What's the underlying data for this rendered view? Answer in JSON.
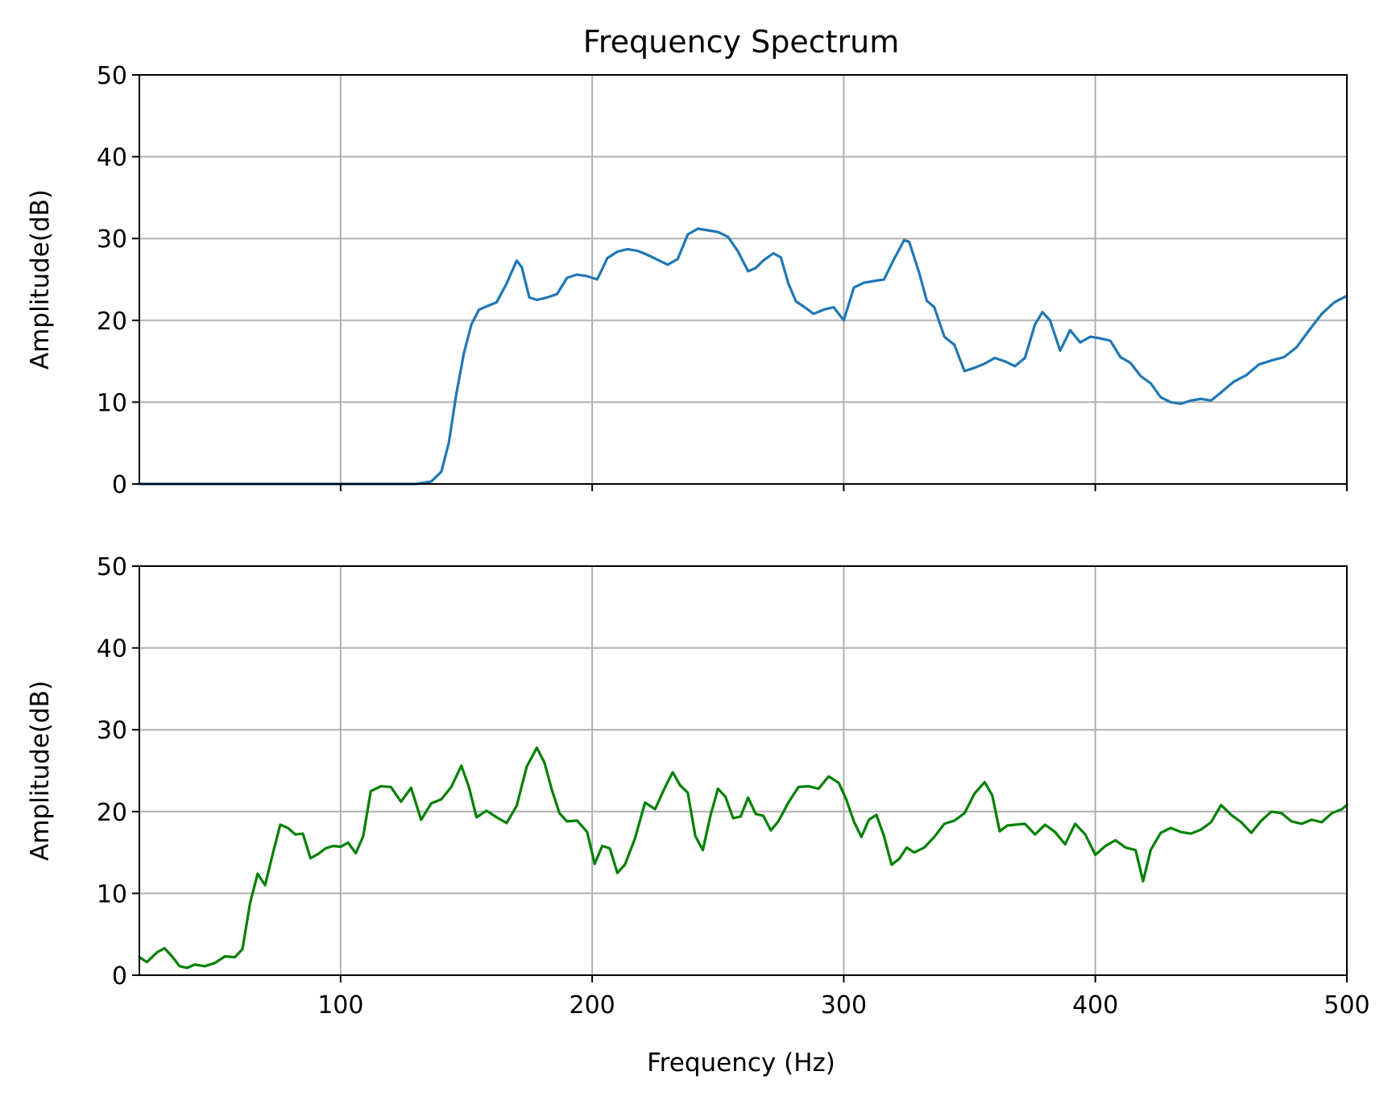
{
  "chart_data": {
    "type": "line",
    "title": "Frequency Spectrum",
    "xlabel": "Frequency (Hz)",
    "xlim": [
      20,
      500
    ],
    "x_ticks": [
      100,
      200,
      300,
      400,
      500
    ],
    "grid": true,
    "panels": [
      {
        "ylabel": "Amplitude(dB)",
        "ylim": [
          0,
          50
        ],
        "y_ticks": [
          0,
          10,
          20,
          30,
          40,
          50
        ],
        "show_x_tick_labels": false,
        "series": [
          {
            "color": "#1f77b4",
            "x": [
              20,
              60,
              100,
              130,
              136,
              140,
              143,
              146,
              149,
              152,
              155,
              158,
              162,
              166,
              170,
              172,
              175,
              178,
              182,
              186,
              190,
              194,
              198,
              202,
              206,
              210,
              214,
              218,
              222,
              226,
              230,
              234,
              238,
              242,
              246,
              250,
              254,
              258,
              262,
              265,
              268,
              272,
              275,
              278,
              281,
              284,
              288,
              292,
              296,
              300,
              304,
              308,
              312,
              316,
              320,
              324,
              326,
              330,
              333,
              336,
              340,
              344,
              348,
              352,
              356,
              360,
              364,
              368,
              372,
              376,
              379,
              382,
              386,
              390,
              394,
              398,
              402,
              406,
              410,
              414,
              418,
              422,
              426,
              430,
              434,
              438,
              442,
              446,
              450,
              455,
              460,
              465,
              470,
              475,
              480,
              485,
              490,
              495,
              500
            ],
            "y": [
              0,
              0,
              0,
              0,
              0.3,
              1.5,
              5,
              11,
              16,
              19.5,
              21.3,
              21.7,
              22.2,
              24.5,
              27.3,
              26.5,
              22.8,
              22.5,
              22.8,
              23.2,
              25.2,
              25.6,
              25.4,
              25,
              27.6,
              28.4,
              28.7,
              28.5,
              28,
              27.4,
              26.8,
              27.5,
              30.5,
              31.2,
              31,
              30.8,
              30.2,
              28.4,
              26,
              26.4,
              27.3,
              28.2,
              27.7,
              24.5,
              22.3,
              21.7,
              20.8,
              21.3,
              21.6,
              20,
              24,
              24.6,
              24.8,
              25,
              27.5,
              29.8,
              29.6,
              25.8,
              22.4,
              21.6,
              18,
              17,
              13.8,
              14.2,
              14.7,
              15.4,
              15,
              14.4,
              15.4,
              19.5,
              21,
              20,
              16.3,
              18.8,
              17.3,
              18,
              17.8,
              17.5,
              15.5,
              14.8,
              13.2,
              12.3,
              10.6,
              10,
              9.8,
              10.2,
              10.4,
              10.2,
              11.2,
              12.5,
              13.3,
              14.6,
              15.1,
              15.5,
              16.7,
              18.8,
              20.8,
              22.2,
              23
            ]
          }
        ]
      },
      {
        "ylabel": "Amplitude(dB)",
        "ylim": [
          0,
          50
        ],
        "y_ticks": [
          0,
          10,
          20,
          30,
          40,
          50
        ],
        "show_x_tick_labels": true,
        "series": [
          {
            "color": "#008000",
            "x": [
              20,
              23,
              27,
              30,
              33,
              36,
              39,
              42,
              46,
              50,
              54,
              58,
              61,
              64,
              67,
              70,
              73,
              76,
              79,
              82,
              85,
              88,
              91,
              94,
              97,
              100,
              103,
              106,
              109,
              112,
              116,
              120,
              124,
              128,
              132,
              136,
              140,
              144,
              148,
              151,
              154,
              158,
              162,
              166,
              170,
              174,
              178,
              181,
              184,
              187,
              190,
              194,
              198,
              201,
              204,
              207,
              210,
              213,
              217,
              221,
              225,
              229,
              232,
              235,
              238,
              241,
              244,
              247,
              250,
              253,
              256,
              259,
              262,
              265,
              268,
              271,
              274,
              278,
              282,
              286,
              290,
              294,
              298,
              301,
              304,
              307,
              310,
              313,
              316,
              319,
              322,
              325,
              328,
              332,
              336,
              340,
              344,
              348,
              352,
              356,
              359,
              362,
              365,
              368,
              372,
              376,
              380,
              384,
              388,
              392,
              396,
              400,
              404,
              408,
              412,
              416,
              419,
              422,
              426,
              430,
              434,
              438,
              442,
              446,
              450,
              454,
              458,
              462,
              466,
              470,
              474,
              478,
              482,
              486,
              490,
              494,
              498,
              500
            ],
            "y": [
              2.2,
              1.6,
              2.8,
              3.3,
              2.3,
              1.1,
              0.9,
              1.3,
              1.1,
              1.5,
              2.3,
              2.2,
              3.2,
              8.8,
              12.4,
              11,
              14.8,
              18.4,
              18,
              17.2,
              17.3,
              14.3,
              14.8,
              15.5,
              15.8,
              15.7,
              16.2,
              14.9,
              17,
              22.5,
              23.1,
              23,
              21.2,
              22.9,
              19,
              21,
              21.5,
              23,
              25.6,
              23,
              19.3,
              20.1,
              19.3,
              18.6,
              20.7,
              25.5,
              27.8,
              26,
              22.6,
              19.8,
              18.8,
              18.9,
              17.5,
              13.6,
              15.8,
              15.5,
              12.5,
              13.5,
              16.7,
              21.1,
              20.3,
              23,
              24.8,
              23.2,
              22.3,
              17,
              15.3,
              19.5,
              22.8,
              21.8,
              19.2,
              19.4,
              21.7,
              19.7,
              19.5,
              17.7,
              18.8,
              21.1,
              23,
              23.1,
              22.8,
              24.3,
              23.5,
              21.5,
              18.8,
              16.9,
              19,
              19.6,
              17,
              13.5,
              14.2,
              15.6,
              15,
              15.6,
              16.9,
              18.5,
              18.9,
              19.8,
              22.2,
              23.6,
              22,
              17.6,
              18.3,
              18.4,
              18.5,
              17.2,
              18.4,
              17.5,
              16,
              18.5,
              17.2,
              14.7,
              15.8,
              16.5,
              15.6,
              15.3,
              11.5,
              15.3,
              17.4,
              18,
              17.5,
              17.3,
              17.8,
              18.7,
              20.8,
              19.6,
              18.7,
              17.4,
              18.9,
              20,
              19.8,
              18.8,
              18.5,
              19,
              18.7,
              19.8,
              20.3,
              20.8
            ]
          }
        ]
      }
    ]
  }
}
